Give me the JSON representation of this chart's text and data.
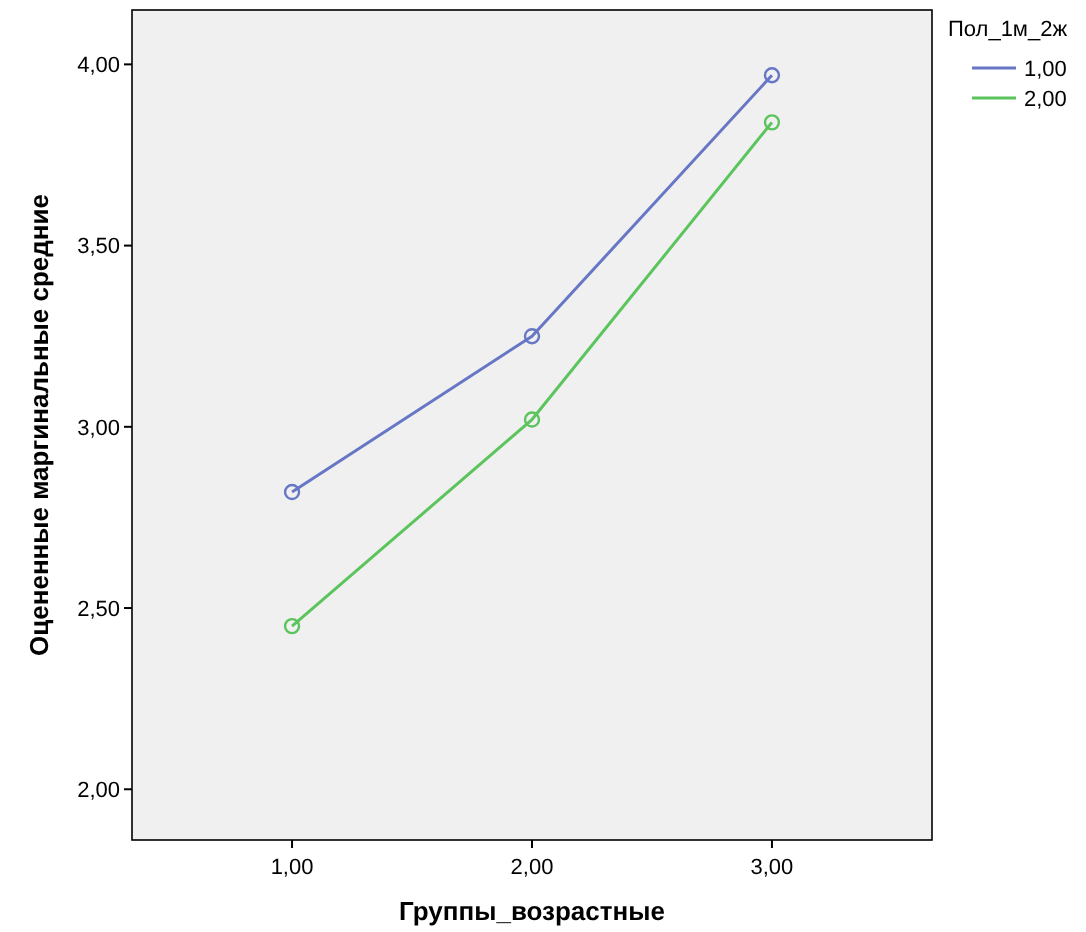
{
  "chart_data": {
    "type": "line",
    "xlabel": "Группы_возрастные",
    "ylabel": "Оцененные маргинальные средние",
    "legend_title": "Пол_1м_2ж",
    "categories": [
      "1,00",
      "2,00",
      "3,00"
    ],
    "series": [
      {
        "name": "1,00",
        "color": "#6777c5",
        "values": [
          2.82,
          3.25,
          3.97
        ]
      },
      {
        "name": "2,00",
        "color": "#5cc45c",
        "values": [
          2.45,
          3.02,
          3.84
        ]
      }
    ],
    "ylim": [
      1.86,
      4.15
    ],
    "yticks": [
      {
        "value": 2,
        "label": "2,00"
      },
      {
        "value": 2.5,
        "label": "2,50"
      },
      {
        "value": 3,
        "label": "3,00"
      },
      {
        "value": 3.5,
        "label": "3,50"
      },
      {
        "value": 4,
        "label": "4,00"
      }
    ],
    "marker": "circle",
    "line_style": "solid",
    "legend": "top right",
    "grid": false
  }
}
